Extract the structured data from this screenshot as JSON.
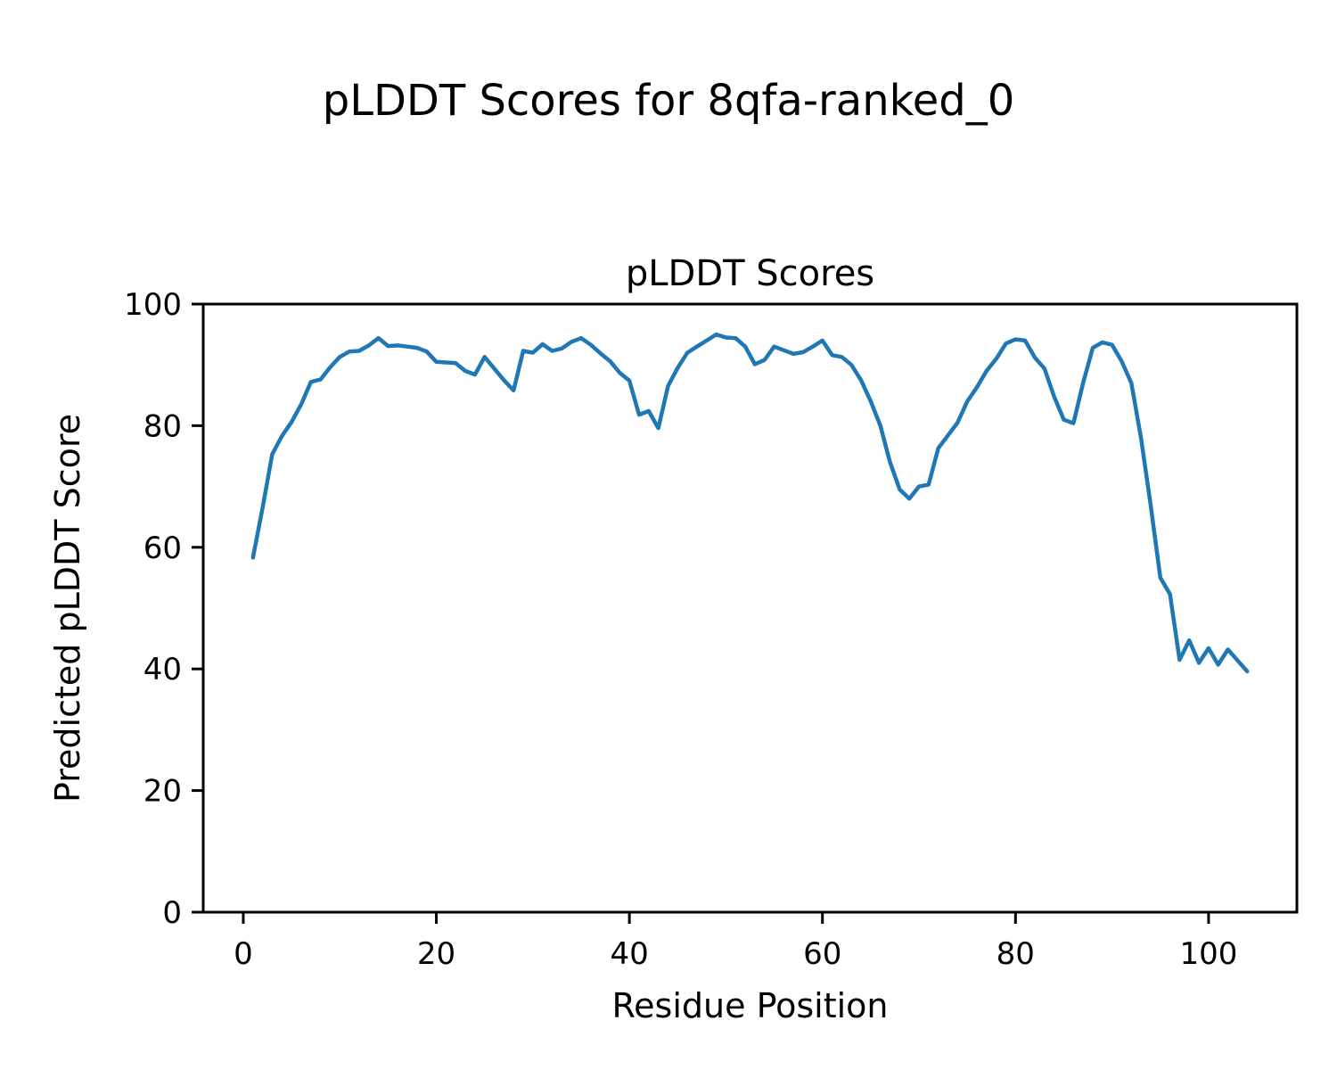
{
  "figure": {
    "suptitle": "pLDDT Scores for 8qfa-ranked_0"
  },
  "chart_data": {
    "type": "line",
    "title": "pLDDT Scores",
    "xlabel": "Residue Position",
    "ylabel": "Predicted pLDDT Score",
    "series_name": "pLDDT",
    "x": [
      1,
      2,
      3,
      4,
      5,
      6,
      7,
      8,
      9,
      10,
      11,
      12,
      13,
      14,
      15,
      16,
      17,
      18,
      19,
      20,
      21,
      22,
      23,
      24,
      25,
      26,
      27,
      28,
      29,
      30,
      31,
      32,
      33,
      34,
      35,
      36,
      37,
      38,
      39,
      40,
      41,
      42,
      43,
      44,
      45,
      46,
      47,
      48,
      49,
      50,
      51,
      52,
      53,
      54,
      55,
      56,
      57,
      58,
      59,
      60,
      61,
      62,
      63,
      64,
      65,
      66,
      67,
      68,
      69,
      70,
      71,
      72,
      73,
      74,
      75,
      76,
      77,
      78,
      79,
      80,
      81,
      82,
      83,
      84,
      85,
      86,
      87,
      88,
      89,
      90,
      91,
      92,
      93,
      94,
      95,
      96,
      97,
      98,
      99,
      100,
      101,
      102,
      103,
      104
    ],
    "y": [
      58.3,
      66.5,
      75.3,
      78.3,
      80.6,
      83.5,
      87.2,
      87.6,
      89.6,
      91.3,
      92.2,
      92.3,
      93.2,
      94.4,
      93.1,
      93.2,
      93.0,
      92.8,
      92.2,
      90.5,
      90.4,
      90.3,
      89.0,
      88.4,
      91.3,
      89.4,
      87.5,
      85.8,
      92.3,
      92.0,
      93.4,
      92.3,
      92.7,
      93.8,
      94.4,
      93.3,
      91.9,
      90.6,
      88.7,
      87.4,
      81.8,
      82.4,
      79.6,
      86.5,
      89.5,
      92.0,
      93.0,
      94.0,
      95.0,
      94.5,
      94.4,
      93.0,
      90.1,
      90.8,
      93.0,
      92.4,
      91.8,
      92.1,
      93.0,
      94.0,
      91.6,
      91.3,
      90.0,
      87.5,
      84.0,
      80.0,
      74.0,
      69.5,
      68.0,
      70.0,
      70.3,
      76.3,
      78.4,
      80.5,
      84.0,
      86.3,
      89.0,
      91.0,
      93.5,
      94.2,
      94.0,
      91.2,
      89.4,
      84.8,
      81.0,
      80.4,
      87.0,
      92.8,
      93.7,
      93.3,
      90.6,
      87.0,
      78.0,
      67.0,
      55.0,
      52.3,
      41.5,
      44.7,
      41.0,
      43.4,
      40.7,
      43.2,
      41.4,
      39.6
    ],
    "xlim": [
      -4.15,
      109.15
    ],
    "ylim": [
      0,
      100
    ],
    "x_ticks": [
      0,
      20,
      40,
      60,
      80,
      100
    ],
    "y_ticks": [
      0,
      20,
      40,
      60,
      80,
      100
    ],
    "grid": false,
    "legend": null,
    "line_color": "#1f77b4",
    "line_width": 4.5,
    "spine_color": "#000000",
    "tick_label_color": "#000000"
  }
}
